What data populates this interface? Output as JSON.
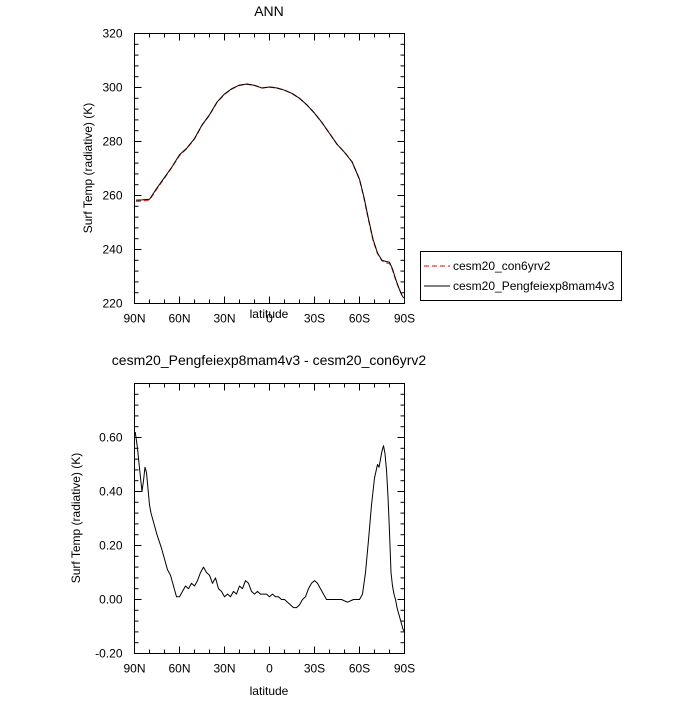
{
  "chart_data": [
    {
      "type": "line",
      "title": "ANN",
      "xlabel": "latitude",
      "ylabel": "Surf Temp (radiative) (K)",
      "xlim": [
        90,
        -90
      ],
      "ylim": [
        220,
        320
      ],
      "xticks": [
        "90N",
        "60N",
        "30N",
        "0",
        "30S",
        "60S",
        "90S"
      ],
      "xtick_values": [
        90,
        60,
        30,
        0,
        -30,
        -60,
        -90
      ],
      "yticks": [
        "220",
        "240",
        "260",
        "280",
        "300",
        "320"
      ],
      "ytick_values": [
        220,
        240,
        260,
        280,
        300,
        320
      ],
      "grid": false,
      "legend_position": "right",
      "series": [
        {
          "name": "cesm20_con6yrv2",
          "color": "#e8382f",
          "dash": "dashed",
          "x": [
            89,
            85,
            80,
            75,
            70,
            65,
            60,
            55,
            50,
            45,
            40,
            35,
            30,
            25,
            20,
            15,
            10,
            5,
            0,
            -5,
            -10,
            -15,
            -20,
            -25,
            -30,
            -35,
            -40,
            -45,
            -50,
            -55,
            -60,
            -63,
            -66,
            -69,
            -72,
            -75,
            -78,
            -80,
            -82,
            -84,
            -86,
            -88,
            -89.5
          ],
          "y": [
            257.8,
            258.0,
            258.3,
            262.5,
            266.5,
            270.5,
            274.8,
            277.5,
            281.0,
            286.0,
            289.8,
            294.5,
            297.5,
            299.5,
            300.8,
            301.2,
            300.8,
            299.8,
            300.2,
            299.8,
            299.0,
            297.8,
            296.0,
            293.5,
            290.5,
            287.0,
            283.0,
            279.0,
            276.0,
            272.5,
            266.0,
            259.0,
            251.0,
            243.5,
            238.5,
            235.8,
            235.0,
            234.8,
            232.5,
            229.0,
            226.0,
            223.5,
            222.5
          ]
        },
        {
          "name": "cesm20_Pengfeiexp8mam4v3",
          "color": "#000000",
          "dash": "solid",
          "x": [
            89,
            85,
            80,
            75,
            70,
            65,
            60,
            55,
            50,
            45,
            40,
            35,
            30,
            25,
            20,
            15,
            10,
            5,
            0,
            -5,
            -10,
            -15,
            -20,
            -25,
            -30,
            -35,
            -40,
            -45,
            -50,
            -55,
            -60,
            -63,
            -66,
            -69,
            -72,
            -75,
            -78,
            -80,
            -82,
            -84,
            -86,
            -88,
            -89.5
          ],
          "y": [
            258.3,
            258.4,
            258.6,
            262.8,
            266.7,
            270.6,
            275.1,
            277.6,
            281.1,
            286.1,
            289.9,
            294.6,
            297.6,
            299.6,
            300.9,
            301.3,
            300.8,
            299.8,
            300.2,
            299.8,
            299.0,
            297.8,
            296.0,
            293.5,
            290.5,
            287.0,
            283.0,
            279.0,
            276.0,
            272.5,
            266.0,
            259.3,
            251.3,
            243.8,
            238.7,
            236.0,
            235.5,
            235.3,
            232.8,
            229.2,
            226.1,
            223.3,
            222.0
          ]
        }
      ]
    },
    {
      "type": "line",
      "title": "cesm20_Pengfeiexp8mam4v3 - cesm20_con6yrv2",
      "xlabel": "latitude",
      "ylabel": "Surf Temp (radiative) (K)",
      "xlim": [
        90,
        -90
      ],
      "ylim": [
        -0.2,
        0.8
      ],
      "xticks": [
        "90N",
        "60N",
        "30N",
        "0",
        "30S",
        "60S",
        "90S"
      ],
      "xtick_values": [
        90,
        60,
        30,
        0,
        -30,
        -60,
        -90
      ],
      "yticks": [
        "-0.20",
        "0.00",
        "0.20",
        "0.40",
        "0.60"
      ],
      "ytick_values": [
        -0.2,
        0.0,
        0.2,
        0.4,
        0.6
      ],
      "grid": false,
      "series": [
        {
          "color": "#000000",
          "dash": "solid",
          "x": [
            89.5,
            88,
            86,
            85,
            84,
            83,
            82,
            80,
            79,
            77,
            75,
            72,
            70,
            68,
            66,
            64,
            62,
            60,
            58,
            56,
            54,
            52,
            50,
            48,
            46,
            44,
            42,
            40,
            38,
            36,
            34,
            32,
            30,
            28,
            26,
            24,
            22,
            20,
            18,
            16,
            14,
            12,
            10,
            8,
            6,
            4,
            2,
            0,
            -2,
            -4,
            -6,
            -8,
            -10,
            -12,
            -14,
            -16,
            -18,
            -20,
            -22,
            -24,
            -26,
            -28,
            -30,
            -32,
            -34,
            -36,
            -38,
            -40,
            -44,
            -48,
            -52,
            -56,
            -60,
            -62,
            -64,
            -66,
            -68,
            -70,
            -72,
            -73,
            -74,
            -75,
            -76,
            -77,
            -78,
            -79,
            -80,
            -81,
            -82,
            -83,
            -84,
            -85,
            -86,
            -87,
            -88,
            -89,
            -90
          ],
          "y": [
            0.62,
            0.56,
            0.45,
            0.4,
            0.44,
            0.49,
            0.47,
            0.35,
            0.32,
            0.28,
            0.24,
            0.19,
            0.15,
            0.11,
            0.09,
            0.05,
            0.01,
            0.01,
            0.03,
            0.05,
            0.04,
            0.06,
            0.05,
            0.07,
            0.1,
            0.12,
            0.1,
            0.09,
            0.06,
            0.08,
            0.04,
            0.03,
            0.01,
            0.02,
            0.01,
            0.03,
            0.02,
            0.05,
            0.04,
            0.07,
            0.06,
            0.03,
            0.02,
            0.03,
            0.02,
            0.02,
            0.02,
            0.01,
            0.02,
            0.01,
            0.01,
            0.0,
            0.0,
            -0.01,
            -0.02,
            -0.03,
            -0.03,
            -0.02,
            0.0,
            0.01,
            0.04,
            0.06,
            0.07,
            0.06,
            0.04,
            0.02,
            0.0,
            0.0,
            0.0,
            0.0,
            -0.01,
            0.0,
            0.0,
            0.02,
            0.1,
            0.22,
            0.35,
            0.45,
            0.5,
            0.49,
            0.52,
            0.55,
            0.57,
            0.54,
            0.48,
            0.38,
            0.25,
            0.1,
            0.05,
            0.02,
            0.0,
            -0.03,
            -0.05,
            -0.07,
            -0.09,
            -0.11,
            -0.12
          ]
        }
      ]
    }
  ]
}
